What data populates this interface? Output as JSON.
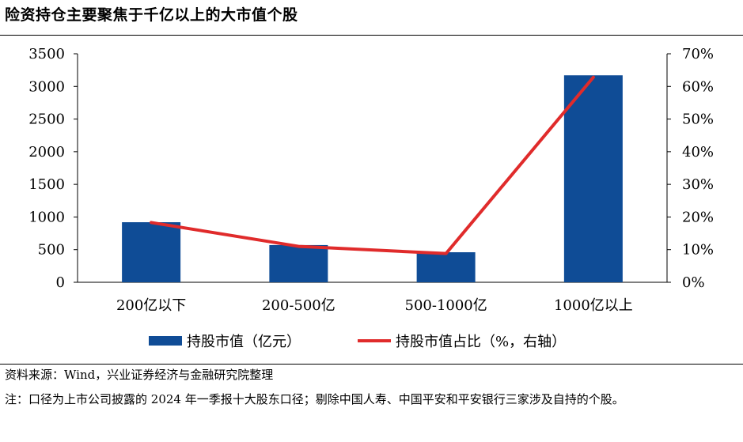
{
  "title": "险资持仓主要聚焦于千亿以上的大市值个股",
  "chart_data": {
    "type": "bar+line",
    "categories": [
      "200亿以下",
      "200-500亿",
      "500-1000亿",
      "1000亿以上"
    ],
    "series": [
      {
        "name": "持股市值（亿元）",
        "type": "bar",
        "axis": "left",
        "color": "#0f4c96",
        "values": [
          920,
          570,
          460,
          3170
        ]
      },
      {
        "name": "持股市值占比（%，右轴）",
        "type": "line",
        "axis": "right",
        "color": "#e02b2b",
        "values": [
          18.3,
          11.0,
          8.8,
          62.8
        ]
      }
    ],
    "left_axis": {
      "ylim": [
        0,
        3500
      ],
      "ticks": [
        "0",
        "500",
        "1000",
        "1500",
        "2000",
        "2500",
        "3000",
        "3500"
      ]
    },
    "right_axis": {
      "ylim": [
        0,
        70
      ],
      "ticks": [
        "0%",
        "10%",
        "20%",
        "30%",
        "40%",
        "50%",
        "60%",
        "70%"
      ]
    },
    "grid": false,
    "legend_position": "bottom"
  },
  "source": "资料来源：Wind，兴业证券经济与金融研究院整理",
  "note": "注：口径为上市公司披露的 2024 年一季报十大股东口径；剔除中国人寿、中国平安和平安银行三家涉及自持的个股。"
}
